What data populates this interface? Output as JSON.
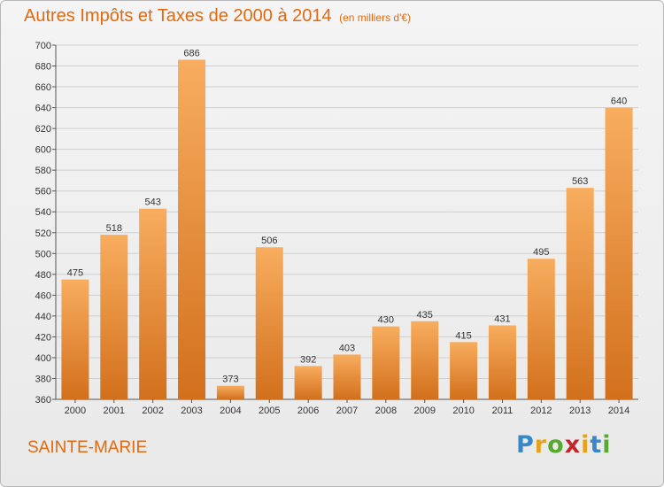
{
  "header": {
    "title": "Autres Impôts et Taxes de 2000 à 2014",
    "subtitle": "(en milliers d'€)"
  },
  "location": "SAINTE-MARIE",
  "brand": {
    "name": "Proxiti",
    "letters": [
      "P",
      "r",
      "o",
      "x",
      "i",
      "t",
      "i"
    ],
    "letter_colors": [
      "#3a87c8",
      "#e8a217",
      "#58a92f",
      "#c2272d",
      "#e8a217",
      "#3a87c8",
      "#58a92f"
    ]
  },
  "colors": {
    "accent": "#e06a12",
    "bar_light": "#f8ad5f",
    "bar_dark": "#d2701c",
    "grid": "#cfcfcf"
  },
  "chart_data": {
    "type": "bar",
    "title": "Autres Impôts et Taxes de 2000 à 2014",
    "subtitle": "(en milliers d'€)",
    "categories": [
      "2000",
      "2001",
      "2002",
      "2003",
      "2004",
      "2005",
      "2006",
      "2007",
      "2008",
      "2009",
      "2010",
      "2011",
      "2012",
      "2013",
      "2014"
    ],
    "values": [
      475,
      518,
      543,
      686,
      373,
      506,
      392,
      403,
      430,
      435,
      415,
      431,
      495,
      563,
      640
    ],
    "ylim": [
      360,
      700
    ],
    "ytick_step": 20,
    "grid": true,
    "data_labels": true
  }
}
